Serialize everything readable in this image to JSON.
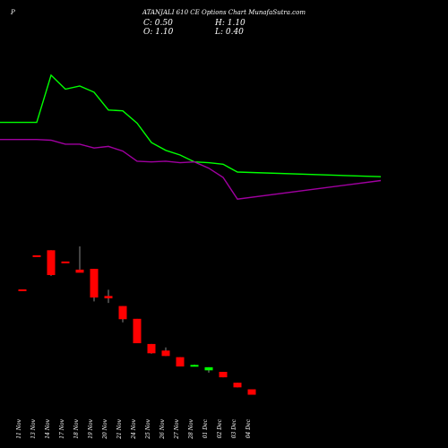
{
  "header": {
    "left_label": "P",
    "title": "ATANJALI 610  CE Options  Chart MunafaSutra.com",
    "ohlc": {
      "c": "C: 0.50",
      "h": "H: 1.10",
      "o": "O: 1.10",
      "l": "L: 0.40"
    }
  },
  "colors": {
    "background": "#000000",
    "line_upper": "#00ff00",
    "line_lower": "#a000a0",
    "bear": "#ff0000",
    "bull": "#00ff00",
    "wick": "#888888",
    "text": "#ffffff"
  },
  "chart_data": {
    "type": "candlestick",
    "title": "",
    "xlabel": "",
    "ylabel": "",
    "categories": [
      "11 Nov",
      "13 Nov",
      "14 Nov",
      "17 Nov",
      "18 Nov",
      "19 Nov",
      "20 Nov",
      "21 Nov",
      "24 Nov",
      "25 Nov",
      "26 Nov",
      "27 Nov",
      "28 Nov",
      "01 Dec",
      "02 Dec",
      "03 Dec",
      "04 Dec"
    ],
    "candles": [
      {
        "date": "11 Nov",
        "open": 5.85,
        "high": 5.85,
        "low": 5.85,
        "close": 5.85
      },
      {
        "date": "13 Nov",
        "open": 10.25,
        "high": 10.25,
        "low": 10.25,
        "close": 10.25
      },
      {
        "date": "14 Nov",
        "open": 10.9,
        "high": 10.9,
        "low": 7.6,
        "close": 7.7
      },
      {
        "date": "17 Nov",
        "open": 9.45,
        "high": 9.45,
        "low": 9.45,
        "close": 9.45
      },
      {
        "date": "18 Nov",
        "open": 8.4,
        "high": 11.4,
        "low": 8.4,
        "close": 8.0
      },
      {
        "date": "19 Nov",
        "open": 8.5,
        "high": 8.5,
        "low": 4.3,
        "close": 4.8
      },
      {
        "date": "20 Nov",
        "open": 5.0,
        "high": 5.8,
        "low": 4.1,
        "close": 4.7
      },
      {
        "date": "21 Nov",
        "open": 3.7,
        "high": 3.7,
        "low": 1.6,
        "close": 2.0
      },
      {
        "date": "24 Nov",
        "open": 2.05,
        "high": 2.05,
        "low": -1.1,
        "close": -1.1
      },
      {
        "date": "25 Nov",
        "open": -1.2,
        "high": -1.2,
        "low": -2.45,
        "close": -2.4
      },
      {
        "date": "26 Nov",
        "open": -2.05,
        "high": -1.65,
        "low": -2.75,
        "close": -2.75
      },
      {
        "date": "27 Nov",
        "open": -2.9,
        "high": -2.9,
        "low": -4.1,
        "close": -4.1
      },
      {
        "date": "28 Nov",
        "open": -4.05,
        "high": -3.85,
        "low": -4.05,
        "close": -3.9
      },
      {
        "date": "01 Dec",
        "open": -4.6,
        "high": -4.2,
        "low": -4.9,
        "close": -4.2
      },
      {
        "date": "02 Dec",
        "open": -4.8,
        "high": -4.8,
        "low": -5.5,
        "close": -5.5
      },
      {
        "date": "03 Dec",
        "open": -6.2,
        "high": -6.2,
        "low": -6.8,
        "close": -6.8
      },
      {
        "date": "04 Dec",
        "open": -7.05,
        "high": -7.05,
        "low": -7.75,
        "close": -7.75
      }
    ],
    "series": [
      {
        "color": "#00ff00",
        "values": [
          27.4,
          27.4,
          33.5,
          31.7,
          32.1,
          31.3,
          29.0,
          28.9,
          27.3,
          24.8,
          23.8,
          23.2,
          22.3,
          22.2,
          22.0,
          21.0,
          20.4
        ]
      },
      {
        "color": "#a000a0",
        "values": [
          25.2,
          25.2,
          25.1,
          24.6,
          24.6,
          24.1,
          24.3,
          23.7,
          22.4,
          22.3,
          22.4,
          22.2,
          22.3,
          21.5,
          20.3,
          17.5,
          19.9
        ]
      }
    ],
    "ylim": [
      -10,
      38
    ],
    "grid": false
  }
}
